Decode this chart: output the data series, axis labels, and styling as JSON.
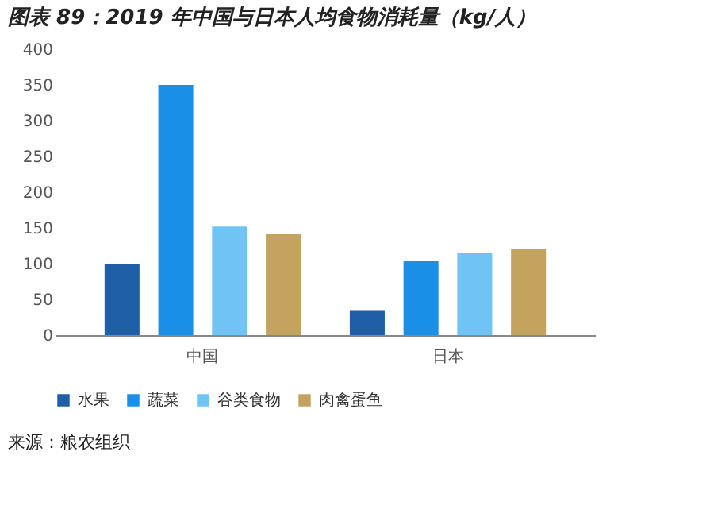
{
  "chart_data": {
    "type": "bar",
    "title": "图表 89：2019 年中国与日本人均食物消耗量（kg/人）",
    "categories": [
      "中国",
      "日本"
    ],
    "series": [
      {
        "name": "水果",
        "color": "#1f5fa8",
        "values": [
          100,
          35
        ]
      },
      {
        "name": "蔬菜",
        "color": "#1a8fe8",
        "values": [
          350,
          104
        ]
      },
      {
        "name": "谷类食物",
        "color": "#70c4f5",
        "values": [
          152,
          115
        ]
      },
      {
        "name": "肉禽蛋鱼",
        "color": "#c4a35e",
        "values": [
          141,
          121
        ]
      }
    ],
    "ylim": [
      0,
      400
    ],
    "yticks": [
      0,
      50,
      100,
      150,
      200,
      250,
      300,
      350,
      400
    ],
    "grid": false,
    "legend": "bottom",
    "annotations": [
      "来源：粮农组织"
    ]
  }
}
